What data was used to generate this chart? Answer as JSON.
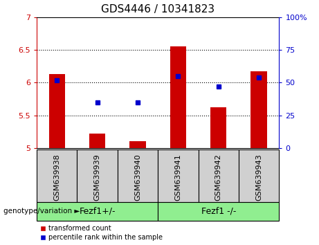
{
  "title": "GDS4446 / 10341823",
  "samples": [
    "GSM639938",
    "GSM639939",
    "GSM639940",
    "GSM639941",
    "GSM639942",
    "GSM639943"
  ],
  "red_values": [
    6.13,
    5.22,
    5.11,
    6.55,
    5.62,
    6.17
  ],
  "blue_values": [
    52,
    35,
    35,
    55,
    47,
    54
  ],
  "ylim_left": [
    5,
    7
  ],
  "ylim_right": [
    0,
    100
  ],
  "yticks_left": [
    5,
    5.5,
    6,
    6.5,
    7
  ],
  "yticks_right": [
    0,
    25,
    50,
    75,
    100
  ],
  "ytick_labels_right": [
    "0",
    "25",
    "50",
    "75",
    "100%"
  ],
  "bar_color": "#cc0000",
  "dot_color": "#0000cc",
  "bar_width": 0.4,
  "group1_label": "Fezf1+/-",
  "group2_label": "Fezf1 -/-",
  "group_color": "#90ee90",
  "sample_box_color": "#d0d0d0",
  "geno_label": "genotype/variation",
  "legend_red": "transformed count",
  "legend_blue": "percentile rank within the sample",
  "title_fontsize": 11,
  "tick_fontsize": 8,
  "label_fontsize": 9,
  "sample_fontsize": 8
}
